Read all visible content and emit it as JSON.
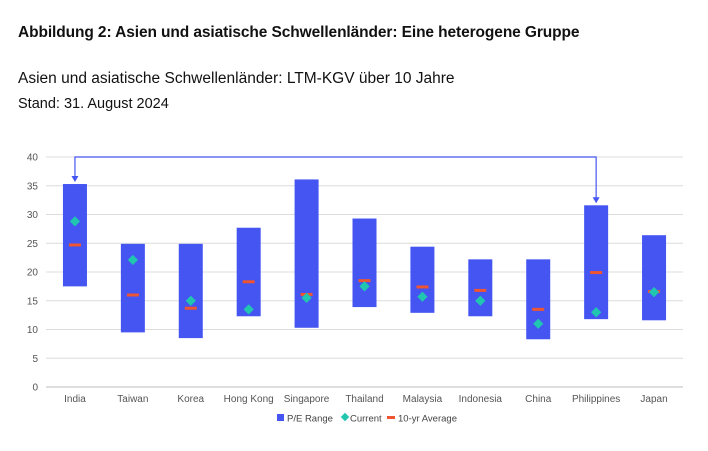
{
  "figure_title": "Abbildung 2: Asien und asiatische Schwellenländer: Eine heterogene Gruppe",
  "chart_title": "Asien und asiatische Schwellenländer: LTM-KGV über 10 Jahre",
  "chart_subtitle": "Stand: 31. August 2024",
  "colors": {
    "range": "#4455f2",
    "current": "#20c6b0",
    "average": "#ee5533",
    "grid": "#dcdcdc",
    "arrow": "#4455f2"
  },
  "chart_data": {
    "type": "bar",
    "title": "Asien und asiatische Schwellenländer: LTM-KGV über 10 Jahre",
    "xlabel": "",
    "ylabel": "",
    "ylim": [
      0,
      40
    ],
    "yticks": [
      0,
      5,
      10,
      15,
      20,
      25,
      30,
      35,
      40
    ],
    "grid": true,
    "legend_position": "bottom",
    "categories": [
      "India",
      "Taiwan",
      "Korea",
      "Hong Kong",
      "Singapore",
      "Thailand",
      "Malaysia",
      "Indonesia",
      "China",
      "Philippines",
      "Japan"
    ],
    "series": [
      {
        "name": "P/E Range",
        "kind": "floating-bar",
        "low": [
          17.5,
          9.5,
          8.5,
          12.3,
          10.3,
          13.9,
          12.9,
          12.3,
          8.3,
          11.8,
          11.6
        ],
        "high": [
          35.3,
          24.9,
          24.9,
          27.7,
          36.1,
          29.3,
          24.4,
          22.2,
          22.2,
          31.6,
          26.4
        ]
      },
      {
        "name": "Current",
        "kind": "marker",
        "values": [
          28.8,
          22.1,
          15.0,
          13.5,
          15.5,
          17.5,
          15.7,
          15.0,
          11.0,
          13.0,
          16.5
        ]
      },
      {
        "name": "10-yr Average",
        "kind": "dash",
        "values": [
          24.7,
          16.0,
          13.7,
          18.3,
          16.1,
          18.5,
          17.4,
          16.8,
          13.5,
          19.9,
          16.6
        ]
      }
    ],
    "annotations": [
      {
        "type": "bracket-arrow",
        "from": "India",
        "to": "Philippines",
        "level": 40
      }
    ]
  }
}
